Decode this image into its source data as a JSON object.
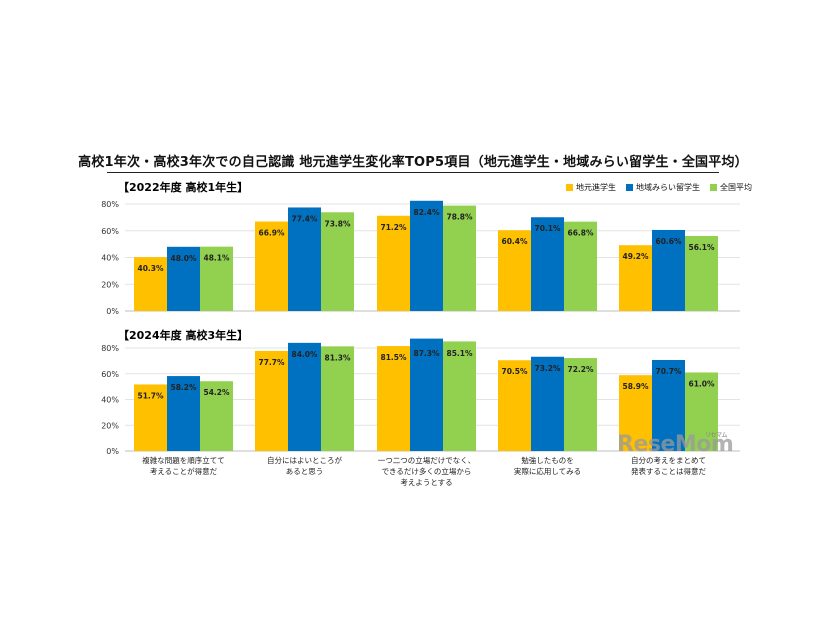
{
  "title": "高校1年次・高校3年次での自己認識 地元進学生変化率TOP5項目（地元進学生・地域みらい留学生・全国平均）",
  "watermark": "ReseMom",
  "watermark_small": "リセマム",
  "chart_data": {
    "type": "bar",
    "categories": [
      "複雑な問題を順序立てて考えることが得意だ",
      "自分にはよいところがあると思う",
      "一つ二つの立場だけでなく、できるだけ多くの立場から考えようとする",
      "勉強したものを実際に応用してみる",
      "自分の考えをまとめて発表することは得意だ"
    ],
    "category_lines": [
      [
        "複雑な問題を順序立てて",
        "考えることが得意だ"
      ],
      [
        "自分にはよいところが",
        "あると思う"
      ],
      [
        "一つ二つの立場だけでなく、",
        "できるだけ多くの立場から",
        "考えようとする"
      ],
      [
        "勉強したものを",
        "実際に応用してみる"
      ],
      [
        "自分の考えをまとめて",
        "発表することは得意だ"
      ]
    ],
    "legend": [
      {
        "name": "地元進学生",
        "color": "#FFC000"
      },
      {
        "name": "地域みらい留学生",
        "color": "#0070C0"
      },
      {
        "name": "全国平均",
        "color": "#92D050"
      }
    ],
    "ylim": [
      0,
      80
    ],
    "yticks": [
      "0%",
      "20%",
      "40%",
      "60%",
      "80%"
    ],
    "panels": [
      {
        "title": "【2022年度 高校1年生】",
        "series": [
          {
            "name": "地元進学生",
            "values": [
              40.3,
              66.9,
              71.2,
              60.4,
              49.2
            ],
            "labels": [
              "40.3%",
              "66.9%",
              "71.2%",
              "60.4%",
              "49.2%"
            ]
          },
          {
            "name": "地域みらい留学生",
            "values": [
              48.0,
              77.4,
              82.4,
              70.1,
              60.6
            ],
            "labels": [
              "48.0%",
              "77.4%",
              "82.4%",
              "70.1%",
              "60.6%"
            ]
          },
          {
            "name": "全国平均",
            "values": [
              48.1,
              73.8,
              78.8,
              66.8,
              56.1
            ],
            "labels": [
              "48.1%",
              "73.8%",
              "78.8%",
              "66.8%",
              "56.1%"
            ]
          }
        ]
      },
      {
        "title": "【2024年度 高校3年生】",
        "series": [
          {
            "name": "地元進学生",
            "values": [
              51.7,
              77.7,
              81.5,
              70.5,
              58.9
            ],
            "labels": [
              "51.7%",
              "77.7%",
              "81.5%",
              "70.5%",
              "58.9%"
            ]
          },
          {
            "name": "地域みらい留学生",
            "values": [
              58.2,
              84.0,
              87.3,
              73.2,
              70.7
            ],
            "labels": [
              "58.2%",
              "84.0%",
              "87.3%",
              "73.2%",
              "70.7%"
            ]
          },
          {
            "name": "全国平均",
            "values": [
              54.2,
              81.3,
              85.1,
              72.2,
              61.0
            ],
            "labels": [
              "54.2%",
              "81.3%",
              "85.1%",
              "72.2%",
              "61.0%"
            ]
          }
        ]
      }
    ]
  }
}
